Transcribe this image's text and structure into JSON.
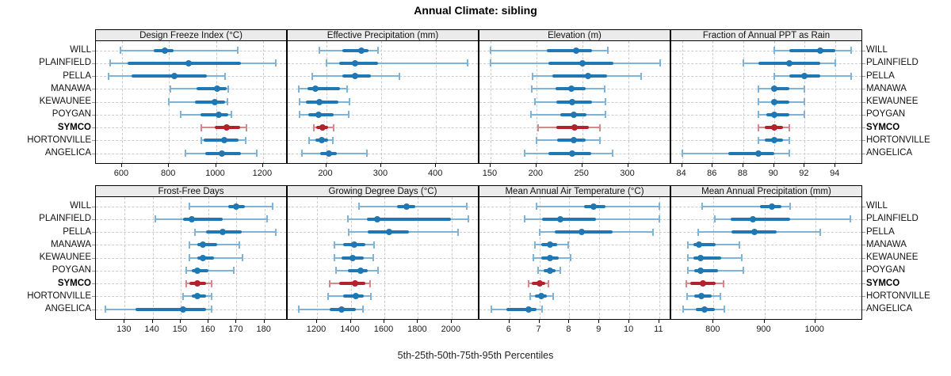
{
  "title": "Annual Climate: sibling",
  "caption": "5th-25th-50th-75th-95th Percentiles",
  "colors": {
    "site_default": "#1f77b4",
    "site_default_light": "#7fb3d7",
    "site_highlight": "#b2222a",
    "site_highlight_light": "#d4888d",
    "strip_bg": "#ebebeb",
    "grid": "#cccccc",
    "panel_border": "#000000"
  },
  "chart_data": {
    "type": "dotplot",
    "percentile_labels": [
      "5th",
      "25th",
      "50th",
      "75th",
      "95th"
    ],
    "sites": [
      "WILL",
      "PLAINFIELD",
      "PELLA",
      "MANAWA",
      "KEWAUNEE",
      "POYGAN",
      "SYMCO",
      "HORTONVILLE",
      "ANGELICA"
    ],
    "highlight_site": "SYMCO",
    "layout": {
      "rows": 2,
      "cols": 4,
      "grid": "dashed",
      "site_labels": "left-and-right",
      "legend": "none"
    },
    "panels": [
      {
        "title": "Design Freeze Index (°C)",
        "ticks": [
          600,
          800,
          1000,
          1200
        ],
        "xlim": [
          489,
          1305
        ],
        "values": [
          [
            595,
            735,
            781,
            819,
            1092
          ],
          [
            549,
            624,
            882,
            1107,
            1254
          ],
          [
            542,
            640,
            822,
            960,
            1038
          ],
          [
            806,
            916,
            1004,
            1045,
            1053
          ],
          [
            800,
            910,
            995,
            1038,
            1048
          ],
          [
            849,
            933,
            1011,
            1053,
            1064
          ],
          [
            936,
            995,
            1045,
            1102,
            1130
          ],
          [
            936,
            948,
            1034,
            1096,
            1127
          ],
          [
            869,
            955,
            1026,
            1107,
            1172
          ]
        ]
      },
      {
        "title": "Effective Precipitation (mm)",
        "ticks": [
          200,
          300,
          400
        ],
        "xlim": [
          130,
          479
        ],
        "values": [
          [
            188,
            230,
            264,
            277,
            295
          ],
          [
            200,
            223,
            252,
            294,
            457
          ],
          [
            175,
            230,
            252,
            282,
            333
          ],
          [
            150,
            166,
            181,
            225,
            238
          ],
          [
            152,
            163,
            187,
            222,
            242
          ],
          [
            152,
            168,
            186,
            214,
            241
          ],
          [
            177,
            182,
            193,
            203,
            213
          ],
          [
            169,
            181,
            192,
            203,
            212
          ],
          [
            156,
            189,
            205,
            219,
            274
          ]
        ]
      },
      {
        "title": "Elevation (m)",
        "ticks": [
          150,
          200,
          250,
          300
        ],
        "xlim": [
          138,
          347
        ],
        "values": [
          [
            150,
            211,
            243,
            261,
            278
          ],
          [
            150,
            213,
            250,
            284,
            335
          ],
          [
            196,
            217,
            256,
            277,
            314
          ],
          [
            195,
            221,
            238,
            254,
            274
          ],
          [
            198,
            222,
            239,
            261,
            275
          ],
          [
            194,
            226,
            241,
            255,
            275
          ],
          [
            202,
            222,
            242,
            257,
            269
          ],
          [
            200,
            223,
            241,
            254,
            269
          ],
          [
            187,
            213,
            239,
            260,
            283
          ]
        ]
      },
      {
        "title": "Fraction of Annual PPT as Rain",
        "ticks": [
          84,
          86,
          88,
          90,
          92,
          94
        ],
        "xlim": [
          83.3,
          95.8
        ],
        "values": [
          [
            90,
            91,
            93,
            94,
            95
          ],
          [
            88,
            89,
            91,
            93,
            94
          ],
          [
            90,
            91,
            92,
            93,
            95
          ],
          [
            89,
            89.8,
            90,
            91,
            92
          ],
          [
            89,
            89.8,
            90,
            91,
            92
          ],
          [
            89,
            89.5,
            90,
            91,
            92
          ],
          [
            89,
            89.4,
            90,
            90.6,
            91
          ],
          [
            89,
            89.4,
            90,
            90.6,
            91
          ],
          [
            84,
            87,
            89,
            90,
            91
          ]
        ]
      },
      {
        "title": "Frost-Free Days",
        "ticks": [
          130,
          140,
          150,
          160,
          170,
          180
        ],
        "xlim": [
          119.7,
          188.3
        ],
        "values": [
          [
            153,
            167,
            170,
            173,
            183
          ],
          [
            141,
            151,
            154,
            165,
            181
          ],
          [
            155,
            159,
            165,
            172,
            184
          ],
          [
            153,
            156,
            158,
            163,
            171
          ],
          [
            153,
            156,
            158,
            162,
            172
          ],
          [
            152,
            154,
            156,
            160,
            169
          ],
          [
            152,
            153,
            156,
            159,
            161
          ],
          [
            151,
            154,
            156,
            159,
            161
          ],
          [
            123,
            134,
            151,
            159,
            161
          ]
        ]
      },
      {
        "title": "Growing Degree Days (°C)",
        "ticks": [
          1200,
          1400,
          1600,
          1800,
          2000
        ],
        "xlim": [
          1026,
          2165
        ],
        "values": [
          [
            1450,
            1675,
            1730,
            1785,
            2090
          ],
          [
            1385,
            1495,
            1558,
            1995,
            2100
          ],
          [
            1390,
            1500,
            1628,
            1745,
            2040
          ],
          [
            1305,
            1355,
            1422,
            1488,
            1540
          ],
          [
            1305,
            1345,
            1412,
            1480,
            1535
          ],
          [
            1315,
            1385,
            1460,
            1502,
            1560
          ],
          [
            1275,
            1330,
            1427,
            1487,
            1514
          ],
          [
            1267,
            1354,
            1432,
            1479,
            1518
          ],
          [
            1090,
            1275,
            1346,
            1432,
            1475
          ]
        ]
      },
      {
        "title": "Mean Annual Air Temperature (°C)",
        "ticks": [
          6,
          7,
          8,
          9,
          10,
          11
        ],
        "xlim": [
          5.0,
          11.4
        ],
        "values": [
          [
            6.9,
            8.5,
            8.8,
            9.2,
            11.0
          ],
          [
            6.5,
            7.1,
            7.7,
            8.9,
            11.0
          ],
          [
            7.0,
            7.5,
            8.4,
            9.45,
            10.8
          ],
          [
            6.85,
            7.05,
            7.35,
            7.6,
            7.95
          ],
          [
            6.8,
            7.05,
            7.35,
            7.65,
            8.05
          ],
          [
            6.95,
            7.15,
            7.35,
            7.55,
            7.7
          ],
          [
            6.65,
            6.75,
            7.0,
            7.2,
            7.3
          ],
          [
            6.7,
            6.85,
            7.05,
            7.25,
            7.45
          ],
          [
            5.4,
            5.9,
            6.65,
            6.9,
            7.1
          ]
        ]
      },
      {
        "title": "Mean Annual Precipitation (mm)",
        "ticks": [
          800,
          900,
          1000
        ],
        "xlim": [
          717,
          1094
        ],
        "values": [
          [
            778,
            892,
            915,
            933,
            950
          ],
          [
            803,
            834,
            878,
            950,
            1069
          ],
          [
            770,
            835,
            880,
            925,
            1010
          ],
          [
            749,
            760,
            772,
            805,
            851
          ],
          [
            750,
            760,
            774,
            815,
            856
          ],
          [
            749,
            762,
            775,
            809,
            858
          ],
          [
            747,
            754,
            779,
            805,
            819
          ],
          [
            748,
            762,
            776,
            796,
            813
          ],
          [
            740,
            765,
            783,
            803,
            822
          ]
        ]
      }
    ]
  }
}
